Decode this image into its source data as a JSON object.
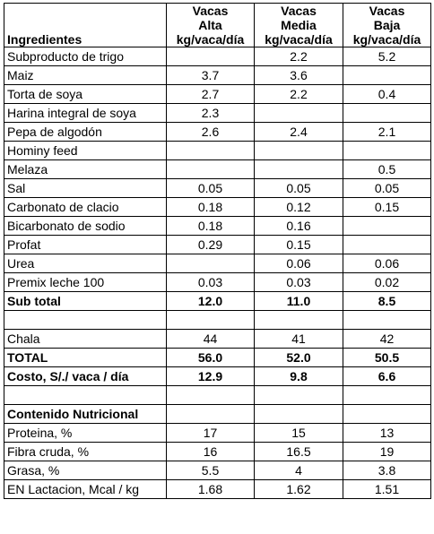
{
  "header": {
    "row1": [
      "",
      "Vacas",
      "Vacas",
      "Vacas"
    ],
    "row2": [
      "",
      "Alta",
      "Media",
      "Baja"
    ],
    "row3": [
      "Ingredientes",
      "kg/vaca/día",
      "kg/vaca/día",
      "kg/vaca/día"
    ]
  },
  "ingredients": [
    {
      "name": "Subproducto de trigo",
      "alta": "",
      "media": "2.2",
      "baja": "5.2"
    },
    {
      "name": "Maiz",
      "alta": "3.7",
      "media": "3.6",
      "baja": ""
    },
    {
      "name": "Torta de soya",
      "alta": "2.7",
      "media": "2.2",
      "baja": "0.4"
    },
    {
      "name": "Harina integral de soya",
      "alta": "2.3",
      "media": "",
      "baja": ""
    },
    {
      "name": "Pepa de algodón",
      "alta": "2.6",
      "media": "2.4",
      "baja": "2.1"
    },
    {
      "name": "Hominy feed",
      "alta": "",
      "media": "",
      "baja": ""
    },
    {
      "name": "Melaza",
      "alta": "",
      "media": "",
      "baja": "0.5"
    },
    {
      "name": "Sal",
      "alta": "0.05",
      "media": "0.05",
      "baja": "0.05"
    },
    {
      "name": "Carbonato de clacio",
      "alta": "0.18",
      "media": "0.12",
      "baja": "0.15"
    },
    {
      "name": "Bicarbonato de sodio",
      "alta": "0.18",
      "media": "0.16",
      "baja": ""
    },
    {
      "name": "Profat",
      "alta": "0.29",
      "media": "0.15",
      "baja": ""
    },
    {
      "name": "Urea",
      "alta": "",
      "media": "0.06",
      "baja": "0.06"
    },
    {
      "name": "Premix leche 100",
      "alta": "0.03",
      "media": "0.03",
      "baja": "0.02"
    }
  ],
  "subtotal": {
    "name": "Sub total",
    "alta": "12.0",
    "media": "11.0",
    "baja": "8.5"
  },
  "totals": [
    {
      "name": "Chala",
      "alta": "44",
      "media": "41",
      "baja": "42",
      "bold": false
    },
    {
      "name": "TOTAL",
      "alta": "56.0",
      "media": "52.0",
      "baja": "50.5",
      "bold": true
    },
    {
      "name": "Costo, S/./ vaca / día",
      "alta": "12.9",
      "media": "9.8",
      "baja": "6.6",
      "bold": true
    }
  ],
  "nutrition": {
    "heading": "Contenido Nutricional",
    "rows": [
      {
        "name": "Proteina, %",
        "alta": "17",
        "media": "15",
        "baja": "13"
      },
      {
        "name": "Fibra cruda, %",
        "alta": "16",
        "media": "16.5",
        "baja": "19"
      },
      {
        "name": "Grasa, %",
        "alta": "5.5",
        "media": "4",
        "baja": "3.8"
      },
      {
        "name": "EN Lactacion, Mcal / kg",
        "alta": "1.68",
        "media": "1.62",
        "baja": "1.51"
      }
    ]
  }
}
